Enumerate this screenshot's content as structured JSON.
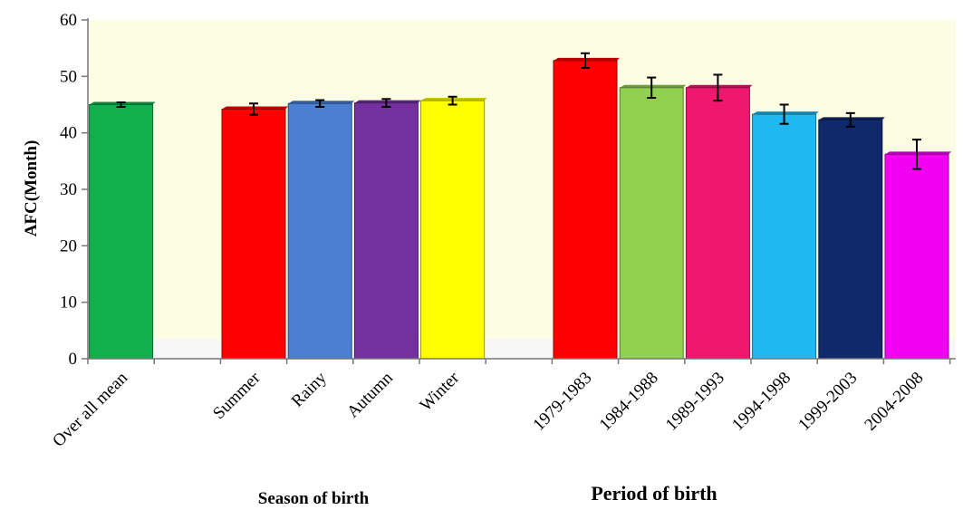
{
  "chart_data": {
    "type": "bar",
    "ylabel": "AFC(Month)",
    "ylim": [
      0,
      60
    ],
    "yticks": [
      0,
      10,
      20,
      30,
      40,
      50,
      60
    ],
    "grid": false,
    "background": "#FDFDE3",
    "group_labels": {
      "season": "Season of birth",
      "period": "Period of birth"
    },
    "bars": [
      {
        "category": "Over all mean",
        "value": 45.0,
        "error": 0.4,
        "color": "#11B04E",
        "group": "overall"
      },
      {
        "category": "Summer",
        "value": 44.2,
        "error": 1.0,
        "color": "#FF0000",
        "group": "season"
      },
      {
        "category": "Rainy",
        "value": 45.2,
        "error": 0.6,
        "color": "#4A7FD3",
        "group": "season"
      },
      {
        "category": "Autumn",
        "value": 45.3,
        "error": 0.7,
        "color": "#7530A0",
        "group": "season"
      },
      {
        "category": "Winter",
        "value": 45.7,
        "error": 0.7,
        "color": "#FFFF00",
        "group": "season"
      },
      {
        "category": "1979-1983",
        "value": 52.8,
        "error": 1.3,
        "color": "#FF0000",
        "group": "period"
      },
      {
        "category": "1984-1988",
        "value": 48.0,
        "error": 1.8,
        "color": "#92D050",
        "group": "period"
      },
      {
        "category": "1989-1993",
        "value": 48.0,
        "error": 2.3,
        "color": "#F0186E",
        "group": "period"
      },
      {
        "category": "1994-1998",
        "value": 43.3,
        "error": 1.7,
        "color": "#1FB8F0",
        "group": "period"
      },
      {
        "category": "1999-2003",
        "value": 42.3,
        "error": 1.2,
        "color": "#10296A",
        "group": "period"
      },
      {
        "category": "2004-2008",
        "value": 36.2,
        "error": 2.6,
        "color": "#F200F2",
        "group": "period"
      }
    ]
  }
}
